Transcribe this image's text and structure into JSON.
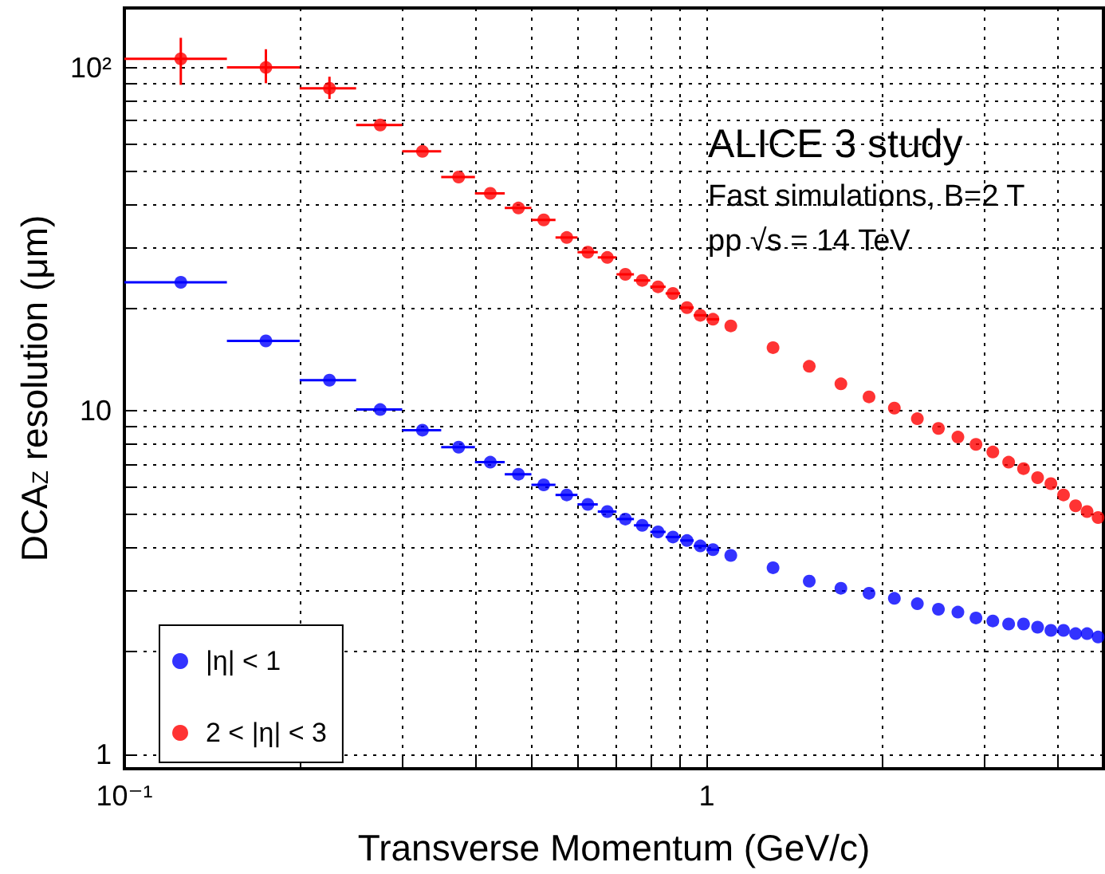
{
  "chart_data": {
    "type": "scatter",
    "xlabel": "Transverse Momentum (GeV/c)",
    "ylabel": "DCA$_{Z}$ resolution (μm)",
    "annotations": [
      "ALICE 3 study",
      "Fast simulations, B=2 T",
      "pp √s = 14 TeV"
    ],
    "log": "xy",
    "grid": true,
    "legend": "bottom left",
    "marker": "circle",
    "xlim": [
      0.1,
      4.8
    ],
    "ylim": [
      0.91,
      149
    ],
    "xticks": [
      {
        "value": 0.1,
        "label": "10⁻¹"
      },
      {
        "value": 0.2,
        "label": null
      },
      {
        "value": 0.3,
        "label": null
      },
      {
        "value": 0.4,
        "label": null
      },
      {
        "value": 0.5,
        "label": null
      },
      {
        "value": 0.6,
        "label": null
      },
      {
        "value": 0.7,
        "label": null
      },
      {
        "value": 0.8,
        "label": null
      },
      {
        "value": 0.9,
        "label": null
      },
      1,
      {
        "value": 2,
        "label": null
      },
      {
        "value": 3,
        "label": null
      },
      {
        "value": 4,
        "label": null
      }
    ],
    "yticks": [
      1,
      {
        "value": 2,
        "label": null
      },
      {
        "value": 3,
        "label": null
      },
      {
        "value": 4,
        "label": null
      },
      {
        "value": 5,
        "label": null
      },
      {
        "value": 6,
        "label": null
      },
      {
        "value": 7,
        "label": null
      },
      {
        "value": 8,
        "label": null
      },
      {
        "value": 9,
        "label": null
      },
      10,
      {
        "value": 20,
        "label": null
      },
      {
        "value": 30,
        "label": null
      },
      {
        "value": 40,
        "label": null
      },
      {
        "value": 50,
        "label": null
      },
      {
        "value": 60,
        "label": null
      },
      {
        "value": 70,
        "label": null
      },
      {
        "value": 80,
        "label": null
      },
      {
        "value": 90,
        "label": null
      },
      {
        "value": 100,
        "label": "10²"
      }
    ],
    "series": [
      {
        "name": "|η| < 1",
        "color": "#0000ff",
        "x": [
          0.125,
          0.175,
          0.225,
          0.275,
          0.325,
          0.375,
          0.425,
          0.475,
          0.525,
          0.575,
          0.625,
          0.675,
          0.725,
          0.775,
          0.825,
          0.875,
          0.925,
          0.975,
          1.025,
          1.1,
          1.3,
          1.5,
          1.7,
          1.9,
          2.1,
          2.3,
          2.5,
          2.7,
          2.9,
          3.1,
          3.3,
          3.5,
          3.7,
          3.9,
          4.1,
          4.3,
          4.5,
          4.7
        ],
        "values": [
          23.7,
          16.0,
          12.3,
          10.1,
          8.8,
          7.85,
          7.1,
          6.55,
          6.1,
          5.7,
          5.35,
          5.1,
          4.85,
          4.65,
          4.45,
          4.3,
          4.2,
          4.05,
          3.95,
          3.8,
          3.5,
          3.2,
          3.05,
          2.95,
          2.85,
          2.75,
          2.65,
          2.6,
          2.5,
          2.45,
          2.4,
          2.4,
          2.35,
          2.3,
          2.3,
          2.25,
          2.25,
          2.2
        ],
        "xerrors": [
          0.025,
          0.025,
          0.025,
          0.025,
          0.025,
          0.025,
          0.025,
          0.025,
          0.025,
          0.025,
          0.025,
          0.025,
          0.025,
          0.025,
          0.025,
          0.025,
          0.025,
          0.025,
          0.025,
          null,
          null,
          null,
          null,
          null,
          null,
          null,
          null,
          null,
          null,
          null,
          null,
          null,
          null,
          null,
          null,
          null,
          null,
          null
        ]
      },
      {
        "name": "2 < |η| < 3",
        "color": "#ff0000",
        "x": [
          0.125,
          0.175,
          0.225,
          0.275,
          0.325,
          0.375,
          0.425,
          0.475,
          0.525,
          0.575,
          0.625,
          0.675,
          0.725,
          0.775,
          0.825,
          0.875,
          0.925,
          0.975,
          1.025,
          1.1,
          1.3,
          1.5,
          1.7,
          1.9,
          2.1,
          2.3,
          2.5,
          2.7,
          2.9,
          3.1,
          3.3,
          3.5,
          3.7,
          3.9,
          4.1,
          4.3,
          4.5,
          4.7
        ],
        "values": [
          106,
          100,
          87,
          68,
          57,
          48,
          43,
          39,
          36,
          32,
          29,
          28,
          25,
          24,
          23,
          22,
          20,
          19,
          18.5,
          17.7,
          15.3,
          13.5,
          12,
          11,
          10.2,
          9.5,
          8.9,
          8.4,
          8,
          7.6,
          7.1,
          6.8,
          6.4,
          6.15,
          5.7,
          5.3,
          5.1,
          4.9
        ],
        "errors": [
          [
            89,
            122
          ],
          [
            90,
            113
          ],
          [
            81,
            94
          ],
          null,
          null,
          null,
          null,
          null,
          null,
          null,
          null,
          null,
          null,
          null,
          null,
          null,
          null,
          null,
          null,
          null,
          null,
          null,
          null,
          null,
          null,
          null,
          null,
          null,
          null,
          null,
          null,
          null,
          null,
          null,
          null,
          null,
          null,
          null
        ],
        "xerrors": [
          0.025,
          0.025,
          0.025,
          0.025,
          0.025,
          0.025,
          0.025,
          0.025,
          0.025,
          0.025,
          0.025,
          0.025,
          0.025,
          0.025,
          0.025,
          0.025,
          0.025,
          0.025,
          0.025,
          null,
          null,
          null,
          null,
          null,
          null,
          null,
          null,
          null,
          null,
          null,
          null,
          null,
          null,
          null,
          null,
          null,
          null,
          null
        ]
      }
    ]
  }
}
